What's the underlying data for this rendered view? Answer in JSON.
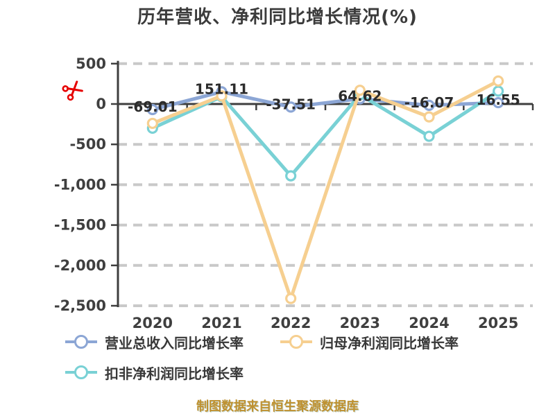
{
  "chart_data": {
    "type": "line",
    "title": "历年营收、净利同比增长情况(%)",
    "categories": [
      "2020",
      "2021",
      "2022",
      "2023",
      "2024",
      "2025"
    ],
    "series": [
      {
        "name": "营业总收入同比增长率",
        "color": "#8ca6d5",
        "values": [
          -69.01,
          151.11,
          -37.51,
          64.62,
          -16.07,
          16.55
        ],
        "point_labels": [
          "-69.01",
          "151.11",
          "-37.51",
          "64.62",
          "-16.07",
          "16.55"
        ]
      },
      {
        "name": "归母净利润同比增长率",
        "color": "#f6cf90",
        "values": [
          -240,
          100,
          -2410,
          170,
          -160,
          285
        ]
      },
      {
        "name": "扣非净利润同比增长率",
        "color": "#79d1d5",
        "values": [
          -300,
          90,
          -890,
          115,
          -400,
          160
        ]
      }
    ],
    "y_axis": {
      "tick_values": [
        500,
        0,
        -500,
        -1000,
        -1500,
        -2000,
        -2500
      ],
      "tick_labels": [
        "500",
        "0",
        "-500",
        "-1,000",
        "-1,500",
        "-2,000",
        "-2,500"
      ],
      "range": [
        -2500,
        500
      ]
    },
    "grid": "horizontal-dashed",
    "legend_position": "bottom-left"
  },
  "decorations": {
    "scissors_icon_color": "#e60000"
  },
  "source_note": "制图数据来自恒生聚源数据库"
}
